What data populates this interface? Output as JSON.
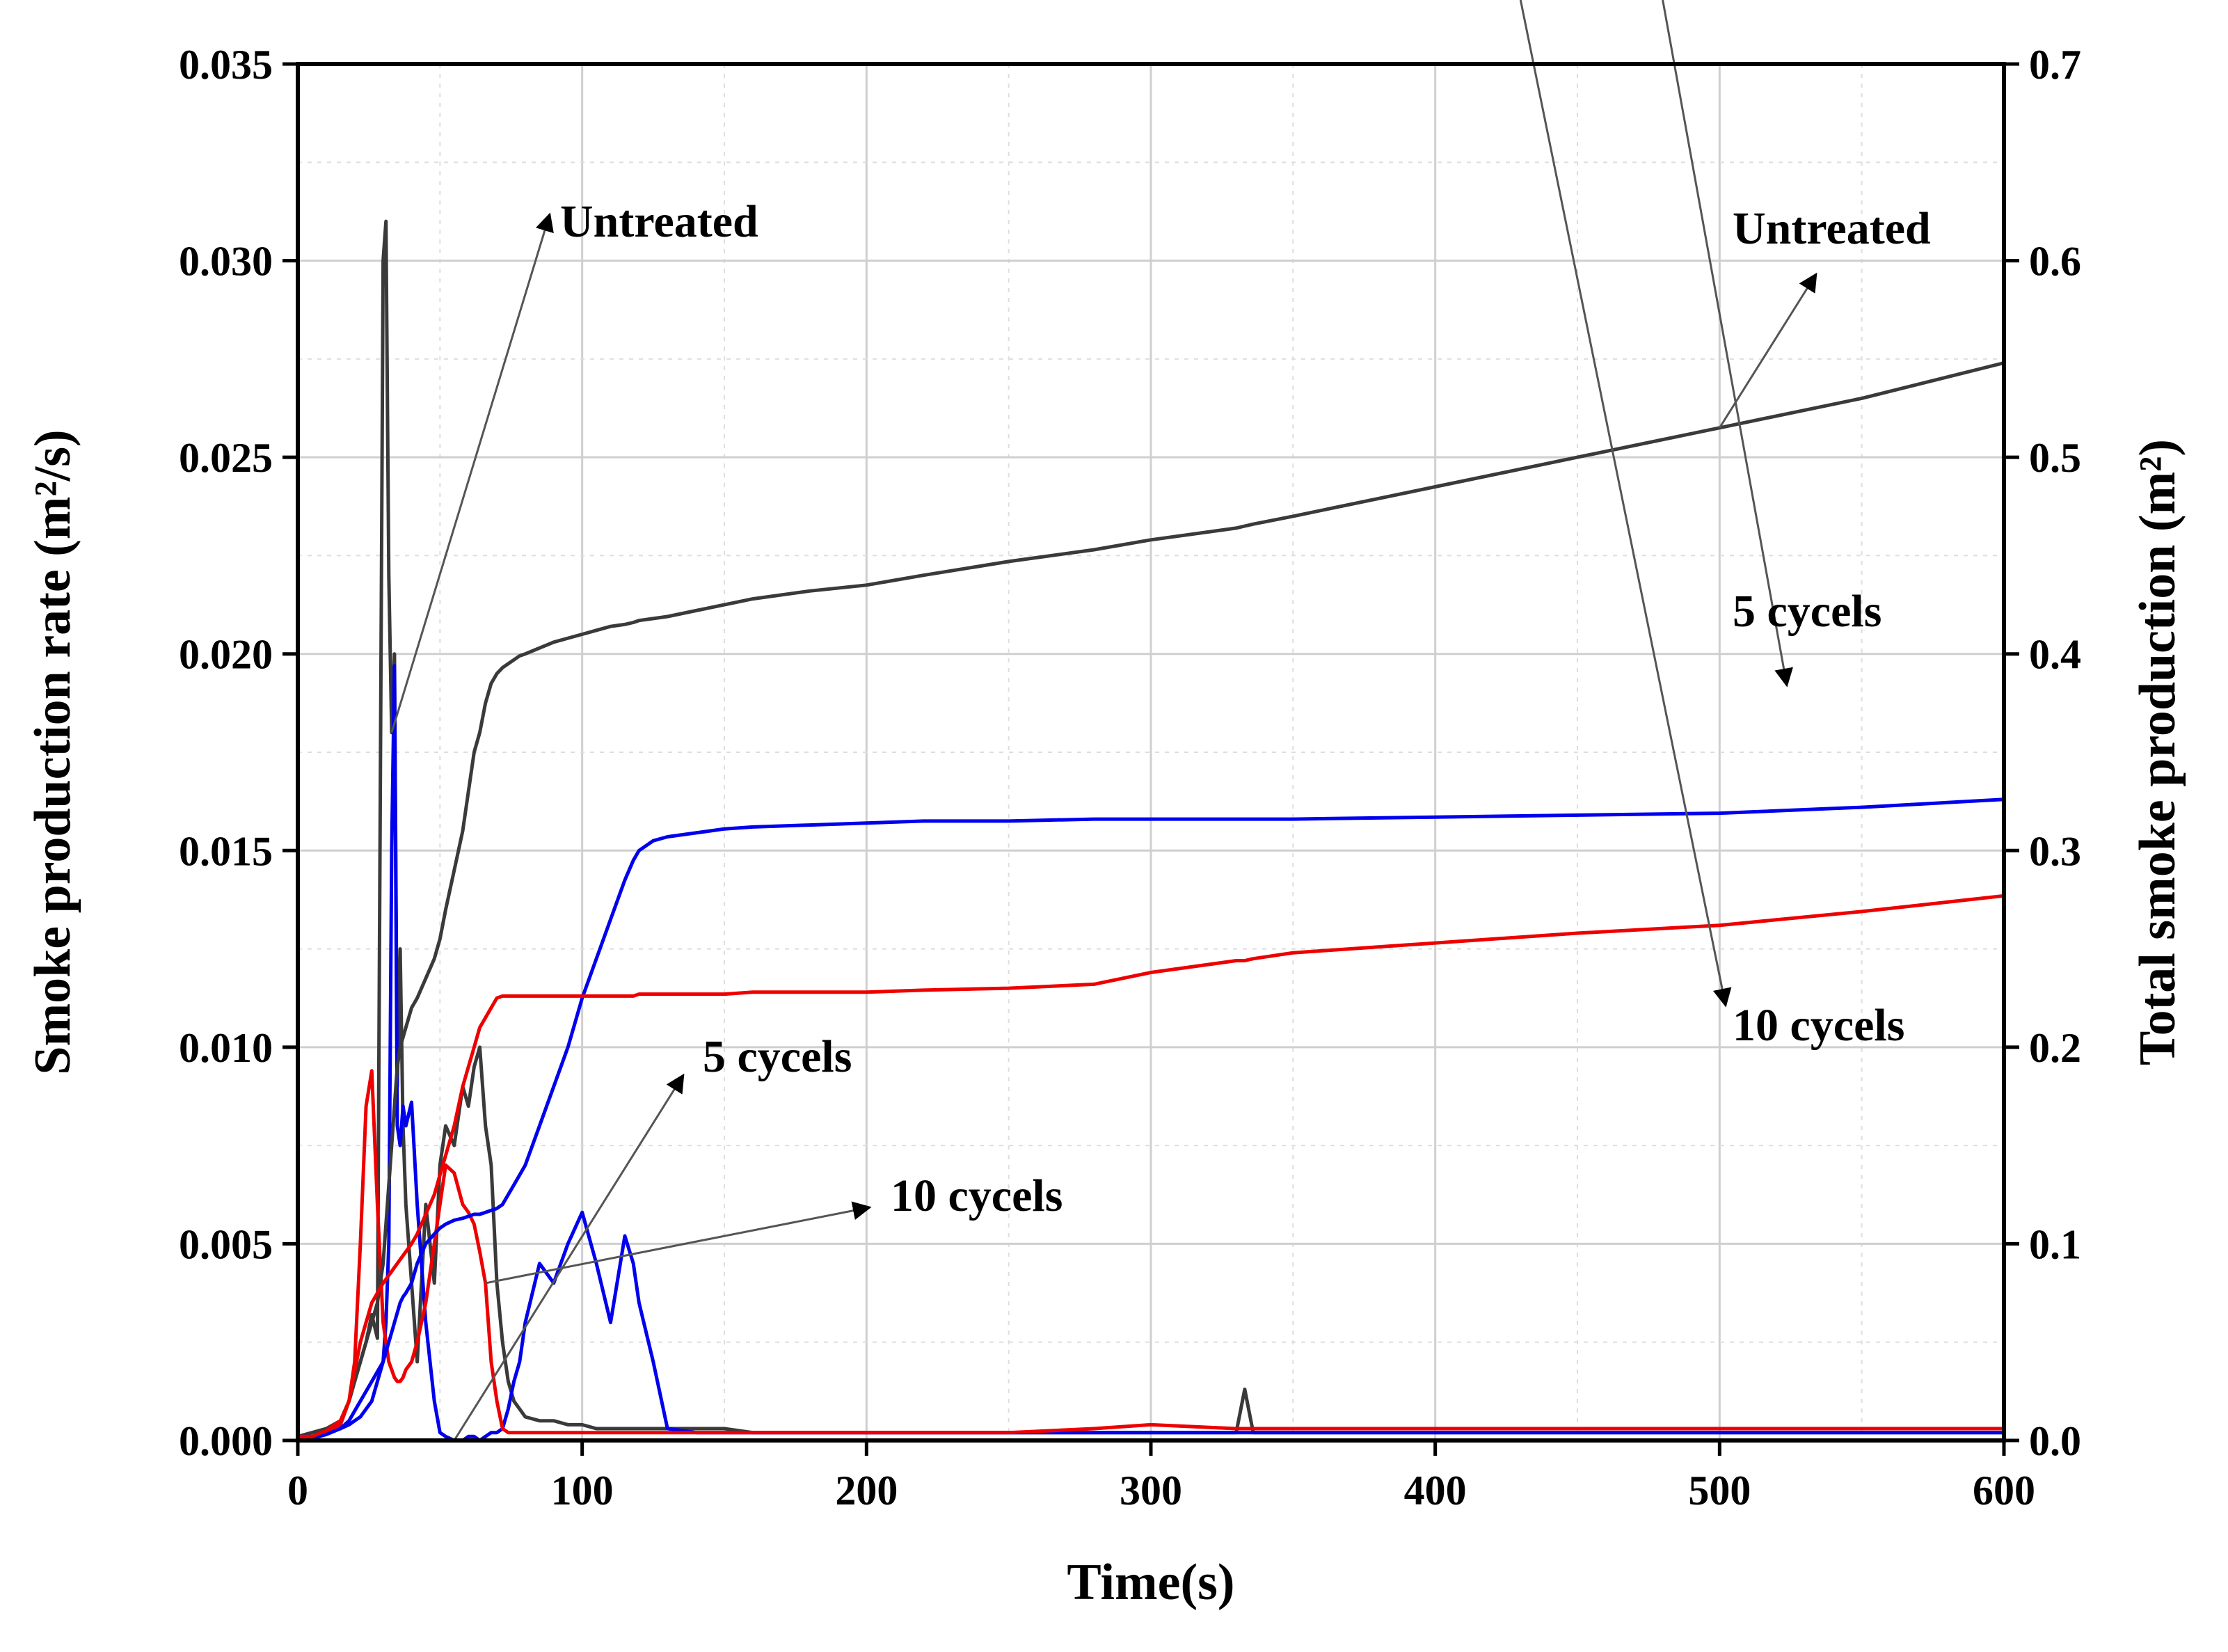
{
  "chart_data": {
    "type": "line",
    "x": [
      0,
      5,
      10,
      15,
      18,
      20,
      22,
      24,
      26,
      28,
      30,
      31,
      32,
      33,
      34,
      35,
      36,
      37,
      38,
      40,
      42,
      45,
      48,
      50,
      52,
      55,
      58,
      60,
      62,
      64,
      66,
      68,
      70,
      72,
      74,
      76,
      78,
      80,
      85,
      90,
      95,
      100,
      105,
      110,
      115,
      118,
      120,
      125,
      130,
      140,
      150,
      160,
      180,
      200,
      220,
      250,
      280,
      300,
      330,
      333,
      336,
      350,
      400,
      450,
      500,
      550,
      600
    ],
    "xlabel": "Time(s)",
    "xlim": [
      0,
      600
    ],
    "x_ticks": [
      "0",
      "100",
      "200",
      "300",
      "400",
      "500",
      "600"
    ],
    "y_left": {
      "label": "Smoke production rate (m²/s)",
      "lim": [
        0,
        0.035
      ],
      "ticks": [
        "0.000",
        "0.005",
        "0.010",
        "0.015",
        "0.020",
        "0.025",
        "0.030",
        "0.035"
      ]
    },
    "y_right": {
      "label": "Total smoke production (m²)",
      "lim": [
        0,
        0.7
      ],
      "ticks": [
        "0.0",
        "0.1",
        "0.2",
        "0.3",
        "0.4",
        "0.5",
        "0.6",
        "0.7"
      ]
    },
    "series": [
      {
        "name": "Untreated SPR",
        "axis": "left",
        "color": "#3a3a3a",
        "values": [
          0.0001,
          0.0002,
          0.0003,
          0.0005,
          0.001,
          0.0015,
          0.002,
          0.0025,
          0.0032,
          0.0026,
          0.03,
          0.031,
          0.022,
          0.018,
          0.02,
          0.009,
          0.0125,
          0.008,
          0.006,
          0.004,
          0.002,
          0.006,
          0.004,
          0.007,
          0.008,
          0.0075,
          0.009,
          0.0085,
          0.0095,
          0.01,
          0.008,
          0.007,
          0.004,
          0.0025,
          0.0015,
          0.001,
          0.0008,
          0.0006,
          0.0005,
          0.0005,
          0.0004,
          0.0004,
          0.0003,
          0.0003,
          0.0003,
          0.0003,
          0.0003,
          0.0003,
          0.0003,
          0.0003,
          0.0003,
          0.0002,
          0.0002,
          0.0002,
          0.0002,
          0.0002,
          0.0002,
          0.0002,
          0.0002,
          0.0013,
          0.0002,
          0.0002,
          0.0002,
          0.0002,
          0.0002,
          0.0002,
          0.0002
        ]
      },
      {
        "name": "5 cycels SPR",
        "axis": "left",
        "color": "#0000ee",
        "values": [
          0.0001,
          0.0001,
          0.0002,
          0.0003,
          0.0004,
          0.0005,
          0.0006,
          0.0008,
          0.001,
          0.0015,
          0.002,
          0.003,
          0.005,
          0.015,
          0.0197,
          0.008,
          0.0075,
          0.0085,
          0.008,
          0.0086,
          0.006,
          0.003,
          0.001,
          0.0002,
          0.0001,
          0.0,
          0.0,
          0.0001,
          0.0001,
          0.0,
          0.0001,
          0.0002,
          0.0002,
          0.0003,
          0.0008,
          0.0015,
          0.002,
          0.003,
          0.0045,
          0.004,
          0.005,
          0.0058,
          0.0045,
          0.003,
          0.0052,
          0.0045,
          0.0035,
          0.002,
          0.0003,
          0.0002,
          0.0002,
          0.0002,
          0.0002,
          0.0002,
          0.0002,
          0.0002,
          0.0002,
          0.0002,
          0.0002,
          0.0002,
          0.0002,
          0.0002,
          0.0002,
          0.0002,
          0.0002,
          0.0002,
          0.0002
        ]
      },
      {
        "name": "10 cycels SPR",
        "axis": "left",
        "color": "#ee0000",
        "values": [
          0.0001,
          0.0001,
          0.0002,
          0.0004,
          0.001,
          0.002,
          0.005,
          0.0085,
          0.0094,
          0.006,
          0.003,
          0.0025,
          0.002,
          0.0018,
          0.0016,
          0.0015,
          0.0015,
          0.0016,
          0.0018,
          0.002,
          0.0025,
          0.0035,
          0.005,
          0.006,
          0.007,
          0.0068,
          0.006,
          0.0058,
          0.0055,
          0.0048,
          0.004,
          0.002,
          0.001,
          0.0003,
          0.0002,
          0.0002,
          0.0002,
          0.0002,
          0.0002,
          0.0002,
          0.0002,
          0.0002,
          0.0002,
          0.0002,
          0.0002,
          0.0002,
          0.0002,
          0.0002,
          0.0002,
          0.0002,
          0.0002,
          0.0002,
          0.0002,
          0.0002,
          0.0002,
          0.0002,
          0.0003,
          0.0004,
          0.0003,
          0.0003,
          0.0003,
          0.0003,
          0.0003,
          0.0003,
          0.0003,
          0.0003,
          0.0003
        ]
      },
      {
        "name": "Untreated TSP",
        "axis": "right",
        "color": "#3a3a3a",
        "values": [
          0.0,
          0.001,
          0.005,
          0.01,
          0.02,
          0.03,
          0.04,
          0.05,
          0.06,
          0.07,
          0.09,
          0.11,
          0.13,
          0.15,
          0.17,
          0.19,
          0.2,
          0.205,
          0.21,
          0.22,
          0.225,
          0.235,
          0.245,
          0.255,
          0.27,
          0.29,
          0.31,
          0.33,
          0.35,
          0.36,
          0.375,
          0.385,
          0.39,
          0.393,
          0.395,
          0.397,
          0.399,
          0.4,
          0.403,
          0.406,
          0.408,
          0.41,
          0.412,
          0.414,
          0.415,
          0.416,
          0.417,
          0.418,
          0.419,
          0.422,
          0.425,
          0.428,
          0.432,
          0.435,
          0.44,
          0.447,
          0.453,
          0.458,
          0.464,
          0.465,
          0.466,
          0.47,
          0.485,
          0.5,
          0.515,
          0.53,
          0.548
        ]
      },
      {
        "name": "5 cycels TSP",
        "axis": "right",
        "color": "#0000ee",
        "values": [
          0.0,
          0.001,
          0.003,
          0.006,
          0.01,
          0.015,
          0.02,
          0.025,
          0.03,
          0.035,
          0.04,
          0.045,
          0.05,
          0.055,
          0.06,
          0.065,
          0.07,
          0.073,
          0.075,
          0.08,
          0.09,
          0.1,
          0.105,
          0.108,
          0.11,
          0.112,
          0.113,
          0.114,
          0.115,
          0.115,
          0.116,
          0.117,
          0.118,
          0.12,
          0.125,
          0.13,
          0.135,
          0.14,
          0.16,
          0.18,
          0.2,
          0.225,
          0.245,
          0.265,
          0.285,
          0.295,
          0.3,
          0.305,
          0.307,
          0.309,
          0.311,
          0.312,
          0.313,
          0.314,
          0.315,
          0.315,
          0.316,
          0.316,
          0.316,
          0.316,
          0.316,
          0.316,
          0.317,
          0.318,
          0.319,
          0.322,
          0.326
        ]
      },
      {
        "name": "10 cycels TSP",
        "axis": "right",
        "color": "#ee0000",
        "values": [
          0.0,
          0.002,
          0.005,
          0.01,
          0.02,
          0.035,
          0.05,
          0.06,
          0.07,
          0.075,
          0.08,
          0.082,
          0.084,
          0.086,
          0.088,
          0.09,
          0.092,
          0.094,
          0.096,
          0.1,
          0.105,
          0.115,
          0.125,
          0.135,
          0.145,
          0.16,
          0.18,
          0.19,
          0.2,
          0.21,
          0.215,
          0.22,
          0.225,
          0.226,
          0.226,
          0.226,
          0.226,
          0.226,
          0.226,
          0.226,
          0.226,
          0.226,
          0.226,
          0.226,
          0.226,
          0.226,
          0.227,
          0.227,
          0.227,
          0.227,
          0.227,
          0.228,
          0.228,
          0.228,
          0.229,
          0.23,
          0.232,
          0.238,
          0.244,
          0.244,
          0.245,
          0.248,
          0.253,
          0.258,
          0.262,
          0.269,
          0.277
        ]
      }
    ],
    "annotations": [
      {
        "text": "Untreated",
        "target_series": "Untreated SPR"
      },
      {
        "text": "Untreated",
        "target_series": "Untreated TSP"
      },
      {
        "text": "5 cycels",
        "target_series": "5 cycels TSP"
      },
      {
        "text": "10 cycels",
        "target_series": "10 cycels TSP"
      },
      {
        "text": "5 cycels",
        "target_series": "5 cycels SPR"
      },
      {
        "text": "10 cycels",
        "target_series": "10 cycels SPR"
      }
    ],
    "grid": true
  }
}
